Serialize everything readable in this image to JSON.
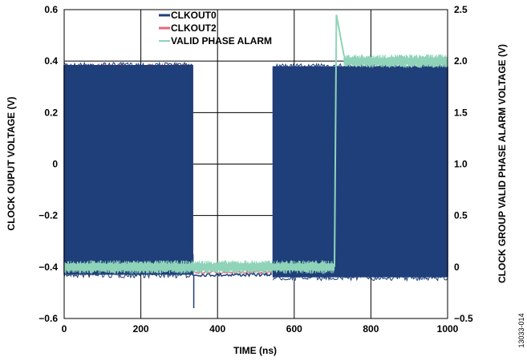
{
  "chart_data": {
    "type": "line",
    "title": "",
    "xlabel": "TIME (ns)",
    "ylabel": "CLOCK OUPUT VOLTAGE (V)",
    "y2label": "CLOCK GROUP VALID PHASE ALARM VOLTAGE (V)",
    "xlim": [
      0,
      1000
    ],
    "ylim": [
      -0.6,
      0.6
    ],
    "y2lim": [
      -0.5,
      2.5
    ],
    "x_ticks": [
      "0",
      "200",
      "400",
      "600",
      "800",
      "1000"
    ],
    "y_ticks": [
      "−0.6",
      "−0.4",
      "−0.2",
      "0",
      "0.2",
      "0.4",
      "0.6"
    ],
    "y2_ticks": [
      "−0.5",
      "0",
      "0.5",
      "1.0",
      "1.5",
      "2.0",
      "2.5"
    ],
    "grid": true,
    "legend_position": "top-center",
    "figure_id": "13033-014",
    "series": [
      {
        "name": "CLKOUT0",
        "axis": "left",
        "color": "#1f3f7a",
        "segments": [
          {
            "kind": "toggling",
            "x": [
              0,
              335
            ],
            "high": 0.385,
            "low": -0.43
          },
          {
            "kind": "flat",
            "x": [
              335,
              545
            ],
            "level": -0.43,
            "spikes": [
              {
                "x": 338,
                "y": -0.56
              },
              {
                "x": 336,
                "y": -0.35
              }
            ]
          },
          {
            "kind": "toggling",
            "x": [
              545,
              1000
            ],
            "high": 0.38,
            "low": -0.44
          }
        ]
      },
      {
        "name": "CLKOUT2",
        "axis": "left",
        "color": "#e8677f",
        "segments": [
          {
            "kind": "toggling",
            "x": [
              0,
              335
            ],
            "high": 0.38,
            "low": -0.42
          },
          {
            "kind": "flat",
            "x": [
              335,
              545
            ],
            "level": -0.42
          },
          {
            "kind": "toggling",
            "x": [
              545,
              1000
            ],
            "high": 0.37,
            "low": -0.42
          }
        ]
      },
      {
        "name": "VALID PHASE ALARM",
        "axis": "right",
        "color": "#8fd3b8",
        "segments": [
          {
            "kind": "band",
            "x": [
              0,
              705
            ],
            "center": 0.0,
            "spread": 0.06
          },
          {
            "kind": "edge",
            "x": [
              705,
              710
            ],
            "from": 0.0,
            "to": 2.45
          },
          {
            "kind": "decay",
            "x": [
              710,
              730
            ],
            "from": 2.45,
            "to": 2.05
          },
          {
            "kind": "band",
            "x": [
              730,
              1000
            ],
            "center": 2.0,
            "spread": 0.06
          }
        ]
      }
    ]
  }
}
